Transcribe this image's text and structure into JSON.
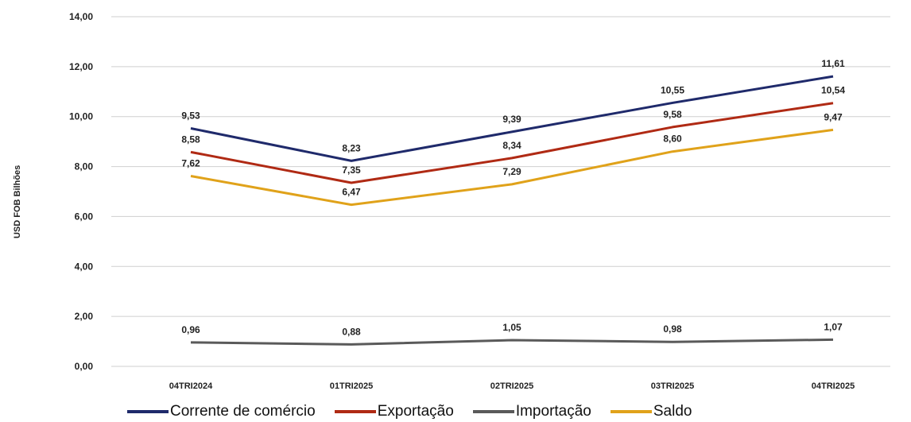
{
  "chart_data": {
    "type": "line",
    "ylabel": "USD FOB Bilhões",
    "ylim": [
      0,
      14
    ],
    "yticks": [
      "0,00",
      "2,00",
      "4,00",
      "6,00",
      "8,00",
      "10,00",
      "12,00",
      "14,00"
    ],
    "categories": [
      "04TRI2024",
      "01TRI2025",
      "02TRI2025",
      "03TRI2025",
      "04TRI2025"
    ],
    "grid": true,
    "legend_position": "bottom",
    "series": [
      {
        "name": "Corrente de comércio",
        "color": "#1f2a6b",
        "values": [
          9.53,
          8.23,
          9.39,
          10.55,
          11.61
        ],
        "labels": [
          "9,53",
          "8,23",
          "9,39",
          "10,55",
          "11,61"
        ]
      },
      {
        "name": "Exportação",
        "color": "#b02a14",
        "values": [
          8.58,
          7.35,
          8.34,
          9.58,
          10.54
        ],
        "labels": [
          "8,58",
          "7,35",
          "8,34",
          "9,58",
          "10,54"
        ]
      },
      {
        "name": "Importação",
        "color": "#5a5a5a",
        "values": [
          0.96,
          0.88,
          1.05,
          0.98,
          1.07
        ],
        "labels": [
          "0,96",
          "0,88",
          "1,05",
          "0,98",
          "1,07"
        ]
      },
      {
        "name": "Saldo",
        "color": "#e0a21a",
        "values": [
          7.62,
          6.47,
          7.29,
          8.6,
          9.47
        ],
        "labels": [
          "7,62",
          "6,47",
          "7,29",
          "8,60",
          "9,47"
        ]
      }
    ]
  }
}
